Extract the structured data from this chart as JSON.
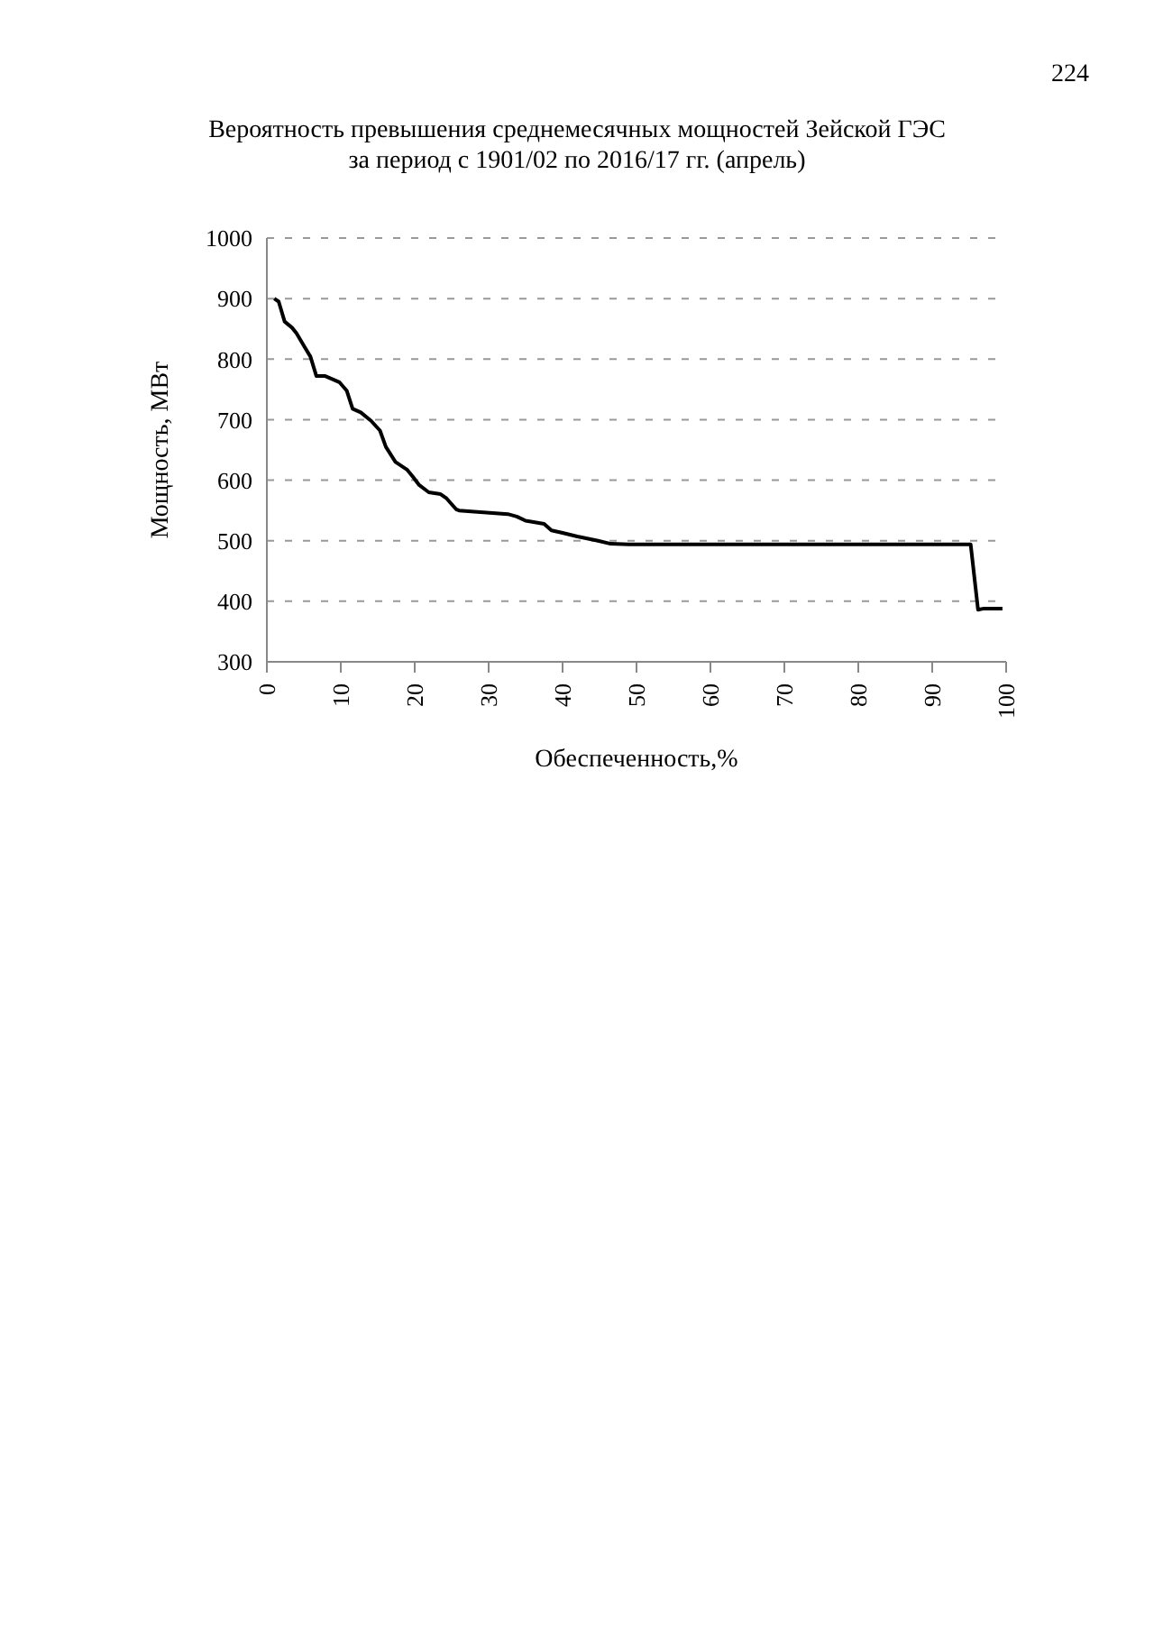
{
  "chart_data": {
    "type": "line",
    "title": "Вероятность превышения среднемесячных мощностей Зейской ГЭС\nза период с 1901/02 по 2016/17 гг. (апрель)",
    "xlabel": "Обеспеченность,%",
    "ylabel": "Мощность, МВт",
    "annotations": [
      "224"
    ],
    "x": [
      1,
      1.6,
      2.4,
      3.4,
      4,
      5.1,
      5.9,
      6.7,
      7.9,
      9.8,
      10.8,
      11.6,
      12.7,
      14.1,
      15.3,
      16.1,
      17.4,
      19,
      19.8,
      20.6,
      21.9,
      23.5,
      24.3,
      25.6,
      26,
      29.3,
      32.6,
      33.8,
      35,
      37.5,
      38.5,
      40,
      42,
      44.8,
      46.5,
      49,
      60,
      70,
      80,
      90,
      95.2,
      96.2,
      97,
      99.5
    ],
    "series": [
      {
        "color": "#000000",
        "values": [
          900,
          895,
          862,
          852,
          843,
          820,
          804,
          772,
          772,
          762,
          748,
          718,
          712,
          698,
          682,
          655,
          630,
          617,
          605,
          592,
          580,
          577,
          570,
          552,
          550,
          547,
          544,
          540,
          533,
          528,
          517,
          513,
          507,
          500,
          495,
          494,
          494,
          494,
          494,
          494,
          494,
          386,
          388,
          388
        ]
      }
    ],
    "xlim": [
      0,
      100
    ],
    "xticks": [
      0,
      10,
      20,
      30,
      40,
      50,
      60,
      70,
      80,
      90,
      100
    ],
    "ylim": [
      300,
      1000
    ],
    "yticks": [
      300,
      400,
      500,
      600,
      700,
      800,
      900,
      1000
    ],
    "grid": "y",
    "legend": false,
    "marker": "none",
    "line_style": "solid"
  }
}
